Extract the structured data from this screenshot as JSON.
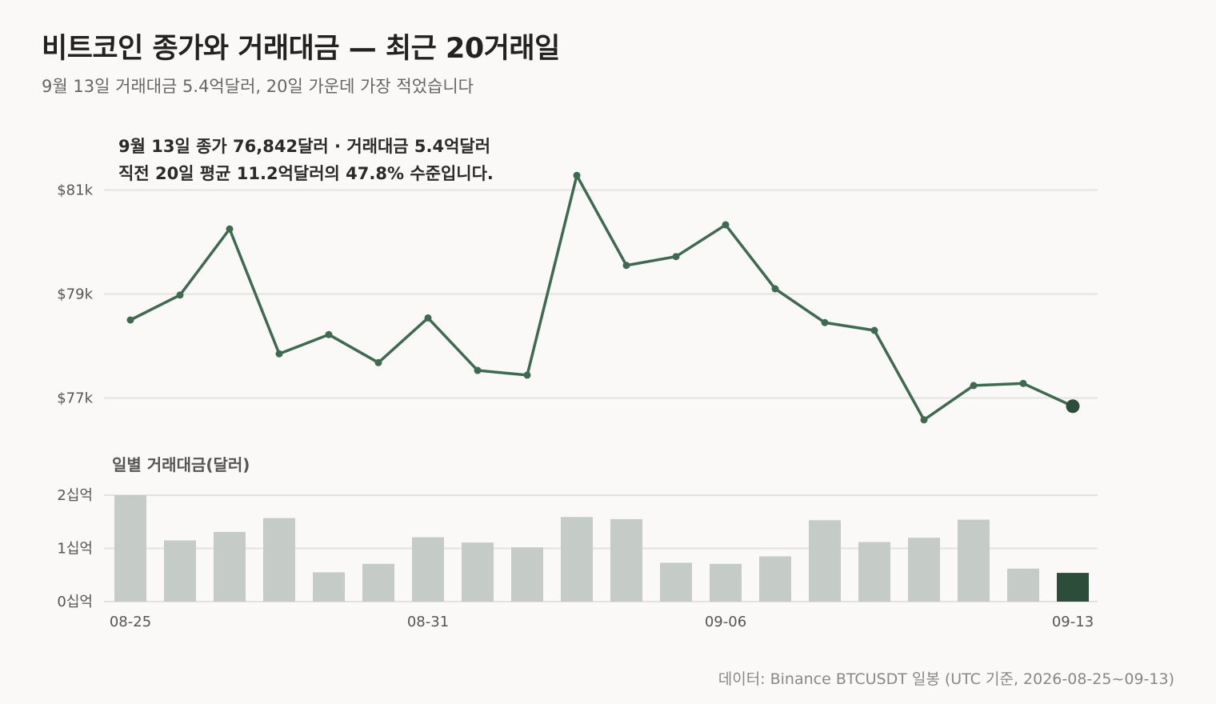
{
  "header": {
    "title": "비트코인 종가와 거래대금 — 최근 20거래일",
    "subtitle": "9월 13일 거래대금 5.4억달러, 20일 가운데 가장 적었습니다"
  },
  "annotation": {
    "line1": "9월 13일 종가 76,842달러 · 거래대금 5.4억달러",
    "line2": "직전 20일 평균 11.2억달러의 47.8% 수준입니다."
  },
  "volume_panel_label": "일별 거래대금(달러)",
  "source": "데이터: Binance BTCUSDT 일봉 (UTC 기준, 2026-08-25~09-13)",
  "colors": {
    "line": "#3d6b4f",
    "bar": "#c5ccc7",
    "bar_highlight": "#2c4d39",
    "grid": "#e2e2e2",
    "last_point": "#2c4d39"
  },
  "chart_data": [
    {
      "type": "line",
      "x": [
        "08-25",
        "08-26",
        "08-27",
        "08-28",
        "08-29",
        "08-30",
        "08-31",
        "09-01",
        "09-02",
        "09-03",
        "09-04",
        "09-05",
        "09-06",
        "09-07",
        "09-08",
        "09-09",
        "09-10",
        "09-11",
        "09-12",
        "09-13"
      ],
      "values": [
        78500,
        78980,
        80250,
        77850,
        78220,
        77680,
        78540,
        77530,
        77440,
        81280,
        79550,
        79720,
        80330,
        79100,
        78450,
        78300,
        76580,
        77240,
        77280,
        76842
      ],
      "yticks": [
        77000,
        79000,
        81000
      ],
      "ytick_labels": [
        "$77k",
        "$79k",
        "$81k"
      ],
      "xtick_labels": [
        "08-25",
        "08-31",
        "09-06",
        "09-13"
      ],
      "ylim": [
        76400,
        81500
      ],
      "grid": true
    },
    {
      "type": "bar",
      "categories": [
        "08-25",
        "08-26",
        "08-27",
        "08-28",
        "08-29",
        "08-30",
        "08-31",
        "09-01",
        "09-02",
        "09-03",
        "09-04",
        "09-05",
        "09-06",
        "09-07",
        "09-08",
        "09-09",
        "09-10",
        "09-11",
        "09-12",
        "09-13"
      ],
      "values": [
        2.0,
        1.15,
        1.31,
        1.57,
        0.55,
        0.71,
        1.21,
        1.11,
        1.02,
        1.59,
        1.55,
        0.73,
        0.71,
        0.85,
        1.53,
        1.12,
        1.2,
        1.54,
        0.62,
        0.54
      ],
      "unit": "십억 달러",
      "yticks": [
        0,
        1,
        2
      ],
      "ytick_labels": [
        "0십억",
        "1십억",
        "2십억"
      ],
      "ylim": [
        0,
        2
      ],
      "highlight_index": 19,
      "grid": true
    }
  ]
}
